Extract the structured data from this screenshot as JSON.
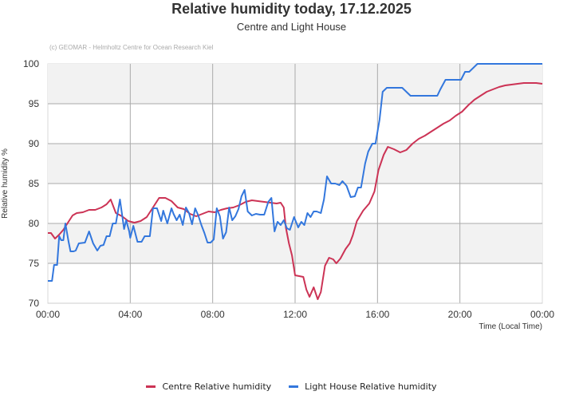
{
  "header": {
    "title": "Relative humidity today, 17.12.2025",
    "subtitle": "Centre and Light House",
    "credit": "(c) GEOMAR - Helmholtz Centre for Ocean Research Kiel"
  },
  "colors": {
    "centre": "#cc3355",
    "lighthouse": "#3377dd",
    "band": "#f2f2f2",
    "grid": "#aaaaaa"
  },
  "chart_data": {
    "type": "line",
    "title": "Relative humidity today, 17.12.2025",
    "subtitle": "Centre and Light House",
    "xlabel": "Time (Local Time)",
    "ylabel": "Relative humidity %",
    "ylim": [
      70,
      100
    ],
    "xlim": [
      0,
      24
    ],
    "yticks": [
      "70",
      "75",
      "80",
      "85",
      "90",
      "95",
      "100"
    ],
    "xticks": [
      "00:00",
      "04:00",
      "08:00",
      "12:00",
      "16:00",
      "20:00",
      "00:00"
    ],
    "grid": true,
    "legend_position": "bottom",
    "series": [
      {
        "name": "Centre Relative humidity",
        "color": "#cc3355",
        "x_hours": [
          0,
          0.15,
          0.35,
          0.55,
          0.75,
          1.0,
          1.2,
          1.4,
          1.7,
          2.0,
          2.3,
          2.6,
          2.85,
          3.05,
          3.3,
          3.6,
          3.9,
          4.2,
          4.5,
          4.8,
          5.1,
          5.4,
          5.7,
          6.0,
          6.3,
          6.6,
          6.9,
          7.2,
          7.5,
          7.8,
          8.1,
          8.4,
          8.7,
          9.0,
          9.3,
          9.6,
          9.9,
          10.2,
          10.5,
          10.8,
          11.1,
          11.3,
          11.45,
          11.55,
          11.7,
          11.85,
          12.0,
          12.2,
          12.4,
          12.55,
          12.7,
          12.9,
          13.1,
          13.25,
          13.45,
          13.65,
          13.85,
          14.0,
          14.2,
          14.45,
          14.65,
          14.8,
          15.0,
          15.3,
          15.6,
          15.85,
          16.05,
          16.3,
          16.5,
          16.8,
          17.1,
          17.4,
          17.7,
          18.0,
          18.3,
          18.6,
          18.9,
          19.2,
          19.5,
          19.8,
          20.1,
          20.4,
          20.7,
          21.0,
          21.3,
          21.6,
          21.9,
          22.2,
          22.5,
          22.8,
          23.1,
          23.4,
          23.7,
          24.0
        ],
        "values": [
          78.8,
          78.8,
          78.1,
          78.6,
          79.2,
          80.2,
          81.0,
          81.3,
          81.4,
          81.7,
          81.7,
          82.0,
          82.4,
          83.0,
          81.3,
          80.9,
          80.3,
          80.1,
          80.3,
          80.8,
          82.0,
          83.2,
          83.2,
          82.8,
          82.0,
          81.8,
          81.2,
          80.9,
          81.2,
          81.5,
          81.4,
          81.7,
          81.9,
          82.0,
          82.3,
          82.7,
          82.9,
          82.8,
          82.7,
          82.6,
          82.5,
          82.6,
          82.0,
          79.5,
          77.5,
          76.0,
          73.5,
          73.4,
          73.3,
          71.7,
          70.8,
          72.0,
          70.5,
          71.4,
          74.7,
          75.7,
          75.5,
          75.0,
          75.6,
          76.8,
          77.5,
          78.5,
          80.3,
          81.6,
          82.5,
          84.0,
          86.7,
          88.6,
          89.6,
          89.3,
          88.9,
          89.2,
          90.0,
          90.6,
          91.0,
          91.5,
          92.0,
          92.5,
          92.9,
          93.5,
          94.0,
          94.8,
          95.5,
          96.0,
          96.5,
          96.8,
          97.1,
          97.3,
          97.4,
          97.5,
          97.6,
          97.6,
          97.6,
          97.5
        ]
      },
      {
        "name": "Light House Relative humidity",
        "color": "#3377dd",
        "x_hours": [
          0,
          0.2,
          0.3,
          0.45,
          0.55,
          0.65,
          0.75,
          0.85,
          1.0,
          1.1,
          1.25,
          1.35,
          1.5,
          1.8,
          2.0,
          2.2,
          2.4,
          2.55,
          2.7,
          2.85,
          3.0,
          3.15,
          3.3,
          3.5,
          3.7,
          3.8,
          3.95,
          4.0,
          4.15,
          4.35,
          4.55,
          4.7,
          4.8,
          4.95,
          5.1,
          5.3,
          5.5,
          5.6,
          5.8,
          6.0,
          6.1,
          6.25,
          6.4,
          6.55,
          6.7,
          6.85,
          7.0,
          7.15,
          7.3,
          7.45,
          7.6,
          7.75,
          7.9,
          8.05,
          8.2,
          8.35,
          8.5,
          8.65,
          8.8,
          8.95,
          9.1,
          9.25,
          9.4,
          9.55,
          9.7,
          9.9,
          10.1,
          10.3,
          10.5,
          10.7,
          10.85,
          11.0,
          11.15,
          11.3,
          11.45,
          11.6,
          11.75,
          11.95,
          12.15,
          12.3,
          12.45,
          12.6,
          12.75,
          12.9,
          13.05,
          13.25,
          13.4,
          13.55,
          13.75,
          13.95,
          14.15,
          14.3,
          14.5,
          14.7,
          14.9,
          15.05,
          15.2,
          15.4,
          15.55,
          15.75,
          15.9,
          16.1,
          16.25,
          16.45,
          16.6,
          16.8,
          17.0,
          17.2,
          17.6,
          17.8,
          18.0,
          18.6,
          18.9,
          19.05,
          19.3,
          19.7,
          19.9,
          20.05,
          20.25,
          20.45,
          20.65,
          20.85,
          21.0,
          21.5,
          22.0,
          22.5,
          23.0,
          23.5,
          24.0
        ],
        "values": [
          72.8,
          72.8,
          74.8,
          74.8,
          78.4,
          77.9,
          77.9,
          80.0,
          77.8,
          76.5,
          76.5,
          76.6,
          77.5,
          77.6,
          79.0,
          77.5,
          76.6,
          77.2,
          77.3,
          78.4,
          78.4,
          80.0,
          80.0,
          83.0,
          79.3,
          80.4,
          79.0,
          78.2,
          79.7,
          77.7,
          77.7,
          78.4,
          78.4,
          78.4,
          81.9,
          81.9,
          80.3,
          81.6,
          80.0,
          81.9,
          81.2,
          80.4,
          81.1,
          79.8,
          82.0,
          81.3,
          79.9,
          81.9,
          81.0,
          79.8,
          78.8,
          77.6,
          77.6,
          78.0,
          81.9,
          80.9,
          78.1,
          78.9,
          82.0,
          80.4,
          80.9,
          81.8,
          83.4,
          84.2,
          81.5,
          81.0,
          81.2,
          81.1,
          81.1,
          82.7,
          83.2,
          79.0,
          80.2,
          79.8,
          80.4,
          79.4,
          79.2,
          80.8,
          79.5,
          80.2,
          79.8,
          81.3,
          80.8,
          81.5,
          81.5,
          81.3,
          83.0,
          85.9,
          85.0,
          85.0,
          84.8,
          85.3,
          84.7,
          83.3,
          83.4,
          84.5,
          84.5,
          87.5,
          89.0,
          90.0,
          90.0,
          93.0,
          96.5,
          97.0,
          97.0,
          97.0,
          97.0,
          97.0,
          96.0,
          96.0,
          96.0,
          96.0,
          96.0,
          96.8,
          98.0,
          98.0,
          98.0,
          98.0,
          99.0,
          99.0,
          99.5,
          100.0,
          100.0,
          100.0,
          100.0,
          100.0,
          100.0,
          100.0,
          100.0
        ]
      }
    ]
  },
  "legend": {
    "items": [
      {
        "label": "Centre Relative humidity",
        "color": "#cc3355"
      },
      {
        "label": "Light House Relative humidity",
        "color": "#3377dd"
      }
    ]
  }
}
